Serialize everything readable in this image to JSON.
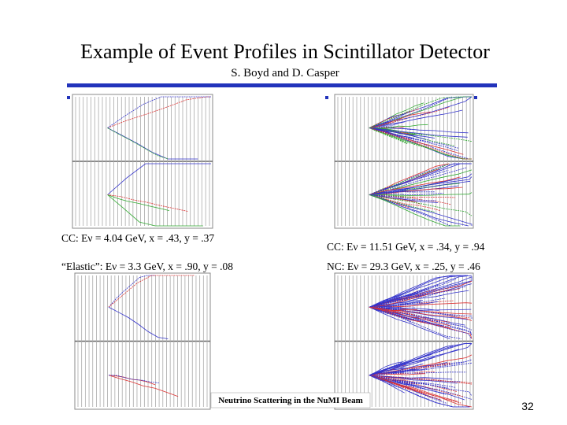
{
  "header": {
    "title": "Example of Event Profiles in Scintillator Detector",
    "subtitle": "S. Boyd and D. Casper"
  },
  "panels": [
    {
      "caption": "CC: Eν = 4.04 GeV, x = .43, y = .37"
    },
    {
      "caption": "CC: Eν = 11.51 GeV, x = .34, y = .94"
    },
    {
      "caption": "“Elastic”: Eν = 3.3 GeV, x = .90, y = .08"
    },
    {
      "caption": "NC: Eν = 29.3 GeV, x = .25, y = .46"
    }
  ],
  "footer": {
    "text": "Neutrino Scattering in the NuMI Beam",
    "page": "32"
  }
}
